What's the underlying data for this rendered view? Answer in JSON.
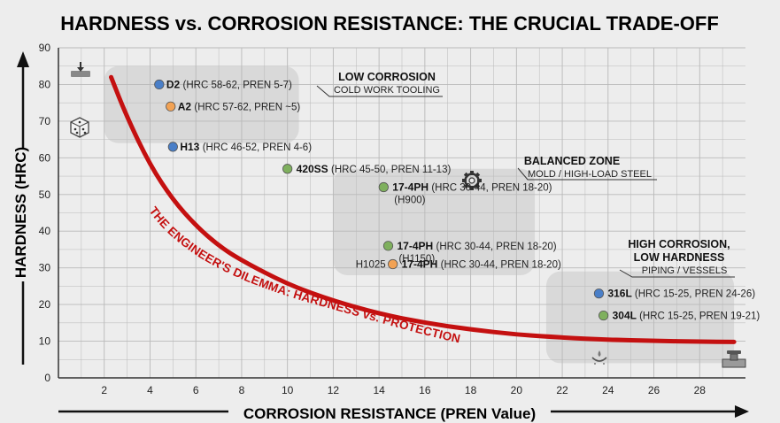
{
  "chart_data": {
    "type": "scatter",
    "title": "HARDNESS vs. CORROSION RESISTANCE: THE CRUCIAL TRADE-OFF",
    "xlabel": "CORROSION RESISTANCE (PREN Value)",
    "ylabel": "HARDNESS (HRC)",
    "xlim": [
      0,
      30
    ],
    "ylim": [
      0,
      90
    ],
    "x_ticks": [
      2,
      4,
      6,
      8,
      10,
      12,
      14,
      16,
      18,
      20,
      22,
      24,
      26,
      28
    ],
    "y_ticks": [
      0,
      10,
      20,
      30,
      40,
      50,
      60,
      70,
      80,
      90
    ],
    "grid": true,
    "points": [
      {
        "x": 4.4,
        "y": 80,
        "name": "D2",
        "detail": "(HRC 58-62, PREN 5-7)",
        "color": "#4a7fc8"
      },
      {
        "x": 4.9,
        "y": 74,
        "name": "A2",
        "detail": "(HRC 57-62, PREN ~5)",
        "color": "#f2a254"
      },
      {
        "x": 5.0,
        "y": 63,
        "name": "H13",
        "detail": "(HRC 46-52, PREN 4-6)",
        "color": "#4a7fc8"
      },
      {
        "x": 10.0,
        "y": 57,
        "name": "420SS",
        "detail": "(HRC 45-50, PREN 11-13)",
        "color": "#7fb05e"
      },
      {
        "x": 14.2,
        "y": 52,
        "name": "17-4PH",
        "detail": "(HRC 30-44, PREN 18-20)",
        "sub": "(H900)",
        "color": "#7fb05e"
      },
      {
        "x": 14.6,
        "y": 31,
        "name": "17-4PH",
        "prefix": "H1025",
        "detail": "(HRC 30-44, PREN 18-20)",
        "color": "#f2a254"
      },
      {
        "x": 14.4,
        "y": 36,
        "name": "17-4PH",
        "detail": "(HRC 30-44, PREN 18-20)",
        "sub": "(H1150)",
        "color": "#7fb05e"
      },
      {
        "x": 23.6,
        "y": 23,
        "name": "316L",
        "detail": "(HRC 15-25, PREN 24-26)",
        "color": "#4a7fc8"
      },
      {
        "x": 23.8,
        "y": 17,
        "name": "304L",
        "detail": "(HRC 15-25, PREN 19-21)",
        "color": "#7fb05e"
      }
    ],
    "trend_curve": {
      "label": "THE ENGINEER'S DILEMMA: HARDNESS vs. PROTECTION",
      "color": "#c41010",
      "x": [
        2.3,
        3,
        4,
        5,
        6,
        7,
        8,
        10,
        12,
        14,
        16,
        18,
        20,
        22,
        24,
        26,
        28,
        29.5
      ],
      "y": [
        82,
        71,
        58,
        48.5,
        41.5,
        36,
        32,
        25.5,
        21,
        17.5,
        15,
        13.2,
        11.8,
        11,
        10.4,
        10.1,
        9.9,
        9.8
      ]
    },
    "zones": [
      {
        "title": "LOW CORROSION",
        "subtitle": "COLD WORK TOOLING"
      },
      {
        "title": "BALANCED ZONE",
        "subtitle": "MOLD / HIGH-LOAD STEEL"
      },
      {
        "title": "HIGH CORROSION,",
        "title2": "LOW HARDNESS",
        "subtitle": "PIPING / VESSELS"
      }
    ],
    "colors": {
      "curve": "#c41010",
      "grid": "#b9b9b9",
      "zone_fill": "#d2d2d2"
    },
    "icons": [
      "hardness-indent-icon",
      "die-cube-icon",
      "gear-icon",
      "corrosion-drip-icon",
      "pipe-valve-icon"
    ]
  }
}
